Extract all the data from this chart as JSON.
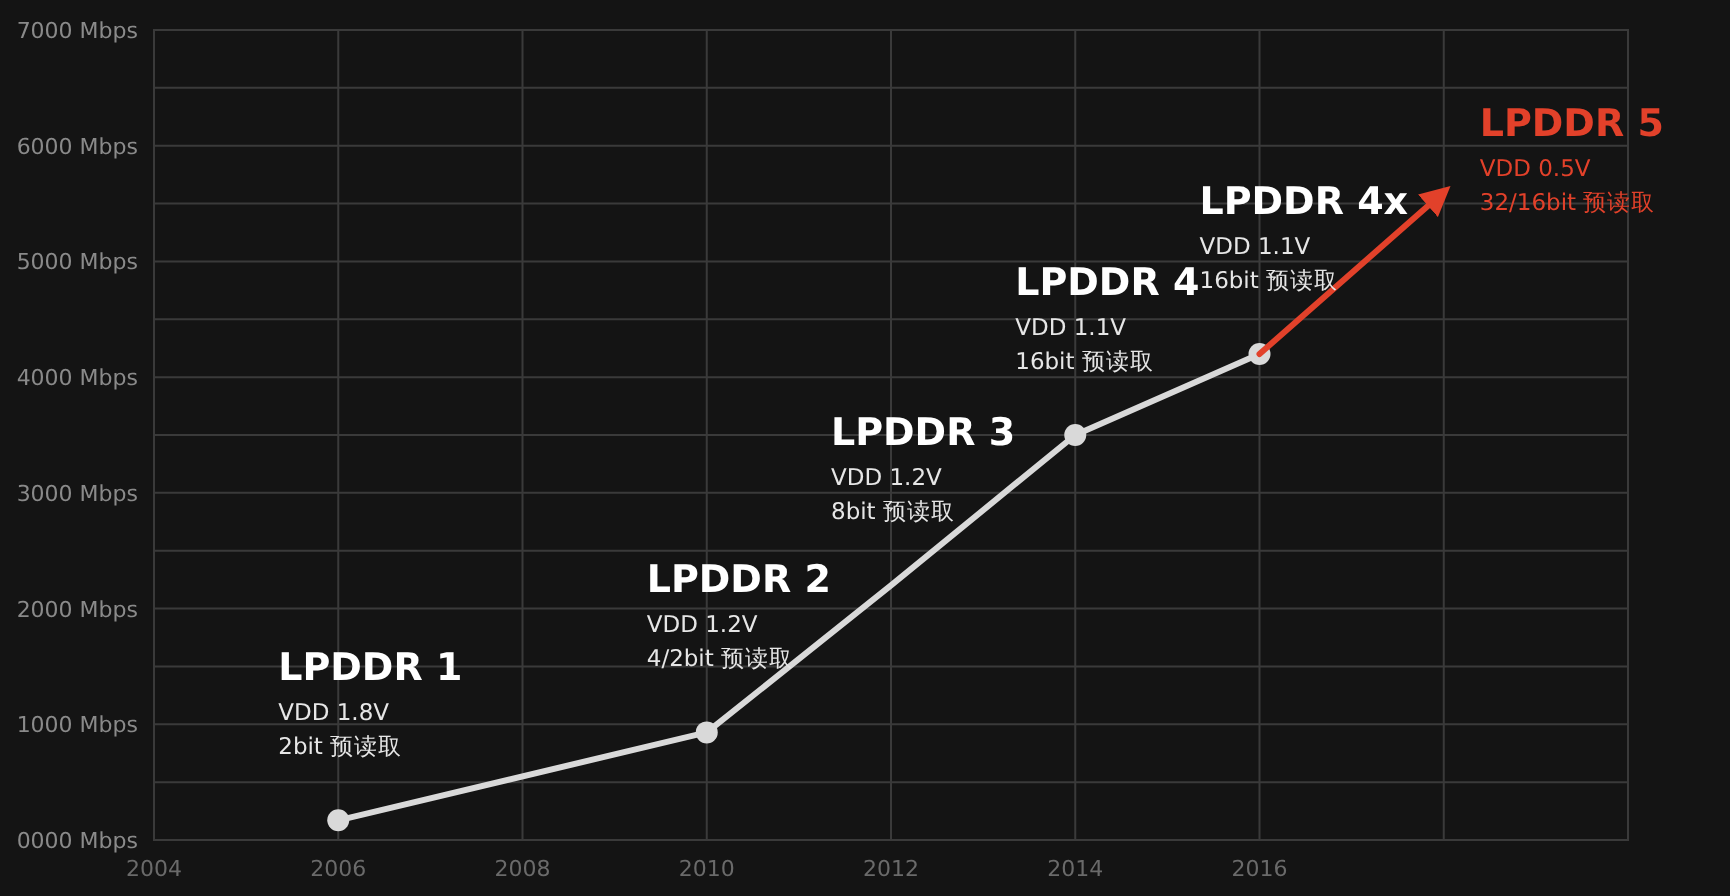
{
  "chart_data": {
    "type": "line",
    "xlim": [
      2004,
      2020
    ],
    "xticks": [
      2004,
      2006,
      2008,
      2010,
      2012,
      2014,
      2016,
      {
        "value": 2018,
        "label": null
      }
    ],
    "ylim": [
      0,
      7000
    ],
    "yticks": [
      {
        "value": 0,
        "label": "0000 Mbps"
      },
      {
        "value": 500,
        "label": null
      },
      {
        "value": 1000,
        "label": "1000 Mbps"
      },
      {
        "value": 1500,
        "label": null
      },
      {
        "value": 2000,
        "label": "2000 Mbps"
      },
      {
        "value": 2500,
        "label": null
      },
      {
        "value": 3000,
        "label": "3000 Mbps"
      },
      {
        "value": 3500,
        "label": null
      },
      {
        "value": 4000,
        "label": "4000 Mbps"
      },
      {
        "value": 4500,
        "label": null
      },
      {
        "value": 5000,
        "label": "5000 Mbps"
      },
      {
        "value": 5500,
        "label": null
      },
      {
        "value": 6000,
        "label": "6000 Mbps"
      },
      {
        "value": 6500,
        "label": null
      },
      {
        "value": 7000,
        "label": "7000 Mbps"
      }
    ],
    "grid": true,
    "series": [
      {
        "color": "#d9d9d9",
        "x": [
          2006,
          2010,
          2012,
          2014,
          2016
        ],
        "values": [
          170,
          930,
          2200,
          3500,
          4200
        ]
      },
      {
        "type": "scatter",
        "color": "#d9d9d9",
        "marker": "circle",
        "x": [
          2006,
          2010,
          2014,
          2016
        ],
        "values": [
          170,
          930,
          3500,
          4200
        ]
      },
      {
        "color": "#e2412a",
        "x": [
          2016,
          2018
        ],
        "values": [
          4200,
          5600
        ]
      }
    ],
    "annotations": [
      {
        "text": "LPDDR 1\nVDD 1.8V\n2bit 预读取",
        "x": 2006,
        "y": 170
      },
      {
        "text": "LPDDR 2\nVDD 1.2V\n4/2bit 预读取",
        "x": 2010,
        "y": 930
      },
      {
        "text": "LPDDR 3\nVDD 1.2V\n8bit 预读取",
        "x": 2012,
        "y": 2200
      },
      {
        "text": "LPDDR 4\nVDD 1.1V\n16bit 预读取",
        "x": 2014,
        "y": 3500
      },
      {
        "text": "LPDDR 4x\nVDD 1.1V\n16bit 预读取",
        "x": 2016,
        "y": 4200
      },
      {
        "text": "LPDDR 5\nVDD 0.5V\n32/16bit 预读取",
        "x": 2018,
        "y": 5600
      }
    ]
  }
}
